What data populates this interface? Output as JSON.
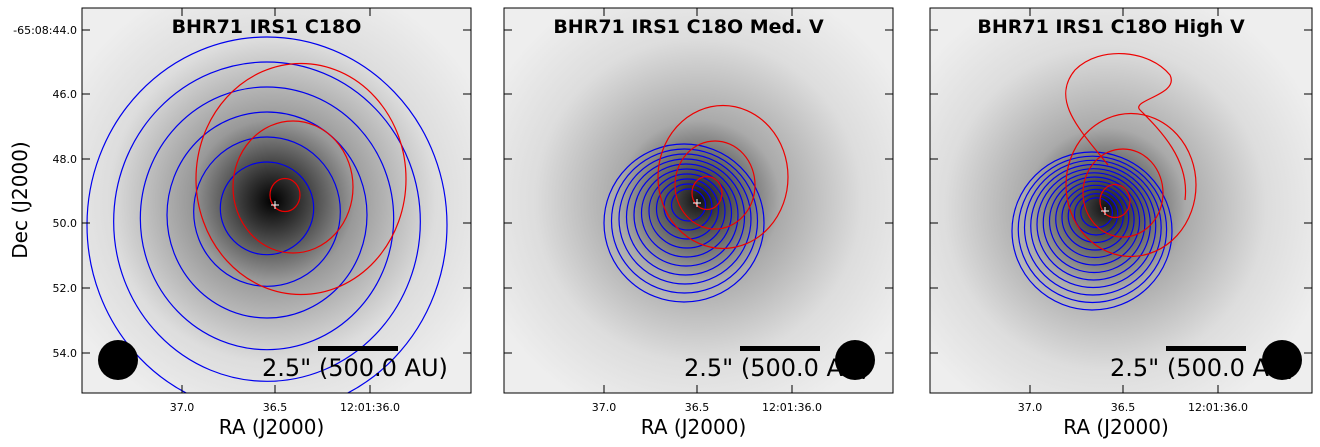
{
  "axes": {
    "x_label": "RA (J2000)",
    "y_label": "Dec (J2000)",
    "x_ticks": [
      "37.0",
      "36.5",
      "12:01:36.0"
    ],
    "y_ticks": [
      "-65:08:44.0",
      "46.0",
      "48.0",
      "50.0",
      "52.0",
      "54.0"
    ]
  },
  "panels": [
    {
      "title": "BHR71 IRS1 C18O",
      "scale_bar": "2.5\" (500.0 AU)"
    },
    {
      "title": "BHR71 IRS1 C18O Med. V",
      "scale_bar": "2.5\" (500.0 AU)"
    },
    {
      "title": "BHR71 IRS1 C18O High V",
      "scale_bar": "2.5\" (500.0 AU)"
    }
  ]
}
